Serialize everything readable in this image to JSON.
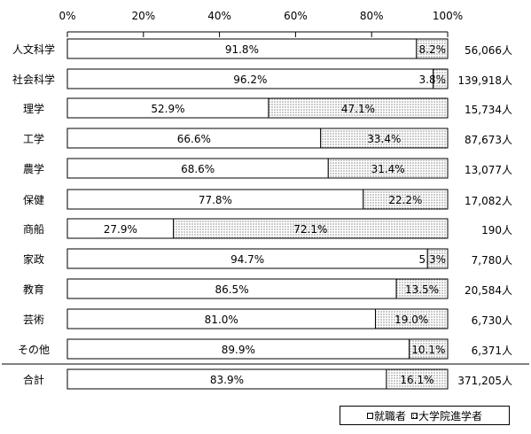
{
  "chart_data": {
    "type": "bar",
    "orientation": "horizontal",
    "stacked": true,
    "xlim": [
      0,
      100
    ],
    "x_ticks": [
      "0%",
      "20%",
      "40%",
      "60%",
      "80%",
      "100%"
    ],
    "categories": [
      "人文科学",
      "社会科学",
      "理学",
      "工学",
      "農学",
      "保健",
      "商船",
      "家政",
      "教育",
      "芸術",
      "その他",
      "合計"
    ],
    "series": [
      {
        "name": "就職者",
        "values": [
          91.8,
          96.2,
          52.9,
          66.6,
          68.6,
          77.8,
          27.9,
          94.7,
          86.5,
          81.0,
          89.9,
          83.9
        ],
        "labels": [
          "91.8%",
          "96.2%",
          "52.9%",
          "66.6%",
          "68.6%",
          "77.8%",
          "27.9%",
          "94.7%",
          "86.5%",
          "81.0%",
          "89.9%",
          "83.9%"
        ]
      },
      {
        "name": "大学院進学者",
        "values": [
          8.2,
          3.8,
          47.1,
          33.4,
          31.4,
          22.2,
          72.1,
          5.3,
          13.5,
          19.0,
          10.1,
          16.1
        ],
        "labels": [
          "8.2%",
          "3.8%",
          "47.1%",
          "33.4%",
          "31.4%",
          "22.2%",
          "72.1%",
          "5.3%",
          "13.5%",
          "19.0%",
          "10.1%",
          "16.1%"
        ]
      }
    ],
    "totals": [
      "56,066人",
      "139,918人",
      "15,734人",
      "87,673人",
      "13,077人",
      "17,082人",
      "190人",
      "7,780人",
      "20,584人",
      "6,730人",
      "6,371人",
      "371,205人"
    ],
    "legend": [
      "就職者",
      "大学院進学者"
    ],
    "legend_position": "bottom-right",
    "colors": {
      "employed": "#ffffff",
      "grad": "#ffffff",
      "dots": "#000000",
      "stroke": "#000000"
    }
  }
}
